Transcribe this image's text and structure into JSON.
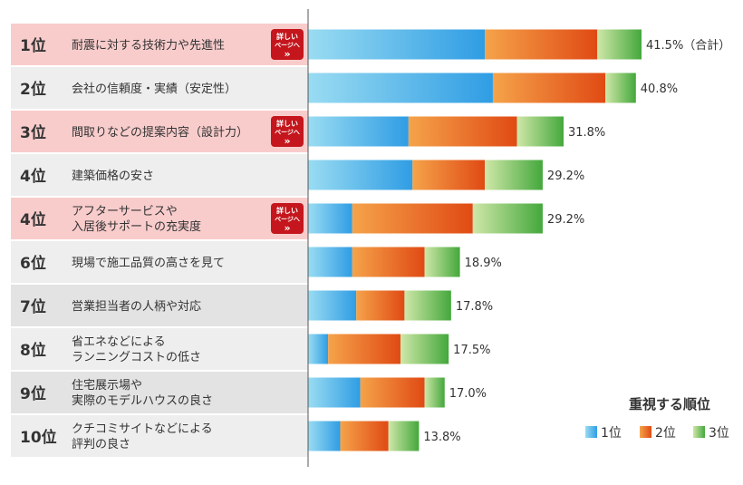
{
  "chart_data": {
    "type": "bar",
    "stacked": true,
    "orientation": "horizontal",
    "categories": [
      {
        "rank": "1位",
        "label": [
          "耐震に対する技術力や先進性"
        ],
        "highlight": true,
        "badge": true
      },
      {
        "rank": "2位",
        "label": [
          "会社の信頼度・実績（安定性）"
        ],
        "highlight": false,
        "badge": false
      },
      {
        "rank": "3位",
        "label": [
          "間取りなどの提案内容（設計力）"
        ],
        "highlight": true,
        "badge": true
      },
      {
        "rank": "4位",
        "label": [
          "建築価格の安さ"
        ],
        "highlight": false,
        "badge": false
      },
      {
        "rank": "4位",
        "label": [
          "アフターサービスや",
          "入居後サポートの充実度"
        ],
        "highlight": true,
        "badge": true
      },
      {
        "rank": "6位",
        "label": [
          "現場で施工品質の高さを見て"
        ],
        "highlight": false,
        "badge": false
      },
      {
        "rank": "7位",
        "label": [
          "営業担当者の人柄や対応"
        ],
        "highlight": false,
        "badge": false
      },
      {
        "rank": "8位",
        "label": [
          "省エネなどによる",
          "ランニングコストの低さ"
        ],
        "highlight": false,
        "badge": false
      },
      {
        "rank": "9位",
        "label": [
          "住宅展示場や",
          "実際のモデルハウスの良さ"
        ],
        "highlight": false,
        "badge": false
      },
      {
        "rank": "10位",
        "label": [
          "クチコミサイトなどによる",
          "評判の良さ"
        ],
        "highlight": false,
        "badge": false
      }
    ],
    "series": [
      {
        "name": "1位",
        "values": [
          22.0,
          23.0,
          12.5,
          13.0,
          5.5,
          5.5,
          6.0,
          2.5,
          6.5,
          4.0
        ],
        "color_start": "#9adcf2",
        "color_end": "#2f9de4"
      },
      {
        "name": "2位",
        "values": [
          14.0,
          14.0,
          13.5,
          9.0,
          15.0,
          9.0,
          6.0,
          9.0,
          8.0,
          6.0
        ],
        "color_start": "#f5a34a",
        "color_end": "#e04a14"
      },
      {
        "name": "3位",
        "values": [
          5.5,
          3.8,
          5.8,
          7.2,
          8.7,
          4.4,
          5.8,
          6.0,
          2.5,
          3.8
        ],
        "color_start": "#cfe7a8",
        "color_end": "#44a83c"
      }
    ],
    "totals": [
      41.5,
      40.8,
      31.8,
      29.2,
      29.2,
      18.9,
      17.8,
      17.5,
      17.0,
      13.8
    ],
    "total_labels": [
      "41.5%（合計）",
      "40.8%",
      "31.8%",
      "29.2%",
      "29.2%",
      "18.9%",
      "17.8%",
      "17.5%",
      "17.0%",
      "13.8%"
    ],
    "xlim": [
      0,
      50
    ],
    "legend": {
      "title": "重視する順位",
      "position": "bottom-right"
    },
    "badge_text": [
      "詳しい",
      "ページへ",
      "»"
    ],
    "colors": {
      "highlight_row": "#f9cccc",
      "normal_row_light": "#eeeeee",
      "normal_row_dark": "#e3e3e3",
      "badge": "#c4161c",
      "axis": "#555555"
    }
  }
}
